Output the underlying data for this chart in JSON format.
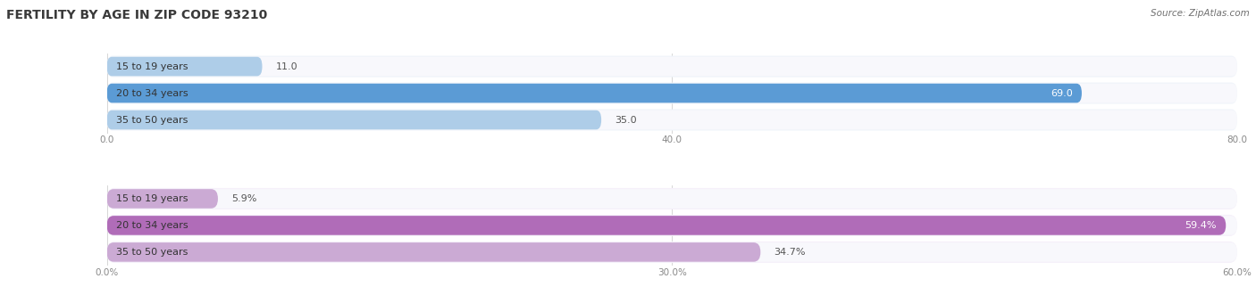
{
  "title": "FERTILITY BY AGE IN ZIP CODE 93210",
  "source": "Source: ZipAtlas.com",
  "top_section": {
    "categories": [
      "15 to 19 years",
      "20 to 34 years",
      "35 to 50 years"
    ],
    "values": [
      11.0,
      69.0,
      35.0
    ],
    "xlim": [
      0,
      80
    ],
    "xticks": [
      0.0,
      40.0,
      80.0
    ],
    "xtick_labels": [
      "0.0",
      "40.0",
      "80.0"
    ],
    "bar_color_light": "#aecde8",
    "bar_color_dark": "#5b9bd5",
    "bg_color": "#e4ecf5",
    "outer_bg": "#f0f4fa"
  },
  "bottom_section": {
    "categories": [
      "15 to 19 years",
      "20 to 34 years",
      "35 to 50 years"
    ],
    "values": [
      5.9,
      59.4,
      34.7
    ],
    "xlim": [
      0,
      60
    ],
    "xticks": [
      0.0,
      30.0,
      60.0
    ],
    "xtick_labels": [
      "0.0%",
      "30.0%",
      "60.0%"
    ],
    "bar_color_light": "#cbaad4",
    "bar_color_dark": "#b06cb8",
    "bg_color": "#ede8f4",
    "outer_bg": "#f5f0fa"
  },
  "title_fontsize": 10,
  "source_fontsize": 7.5,
  "label_fontsize": 8,
  "value_fontsize": 8,
  "tick_fontsize": 7.5,
  "title_color": "#3a3a3a",
  "source_color": "#707070",
  "tick_color": "#888888",
  "bar_height": 0.72
}
